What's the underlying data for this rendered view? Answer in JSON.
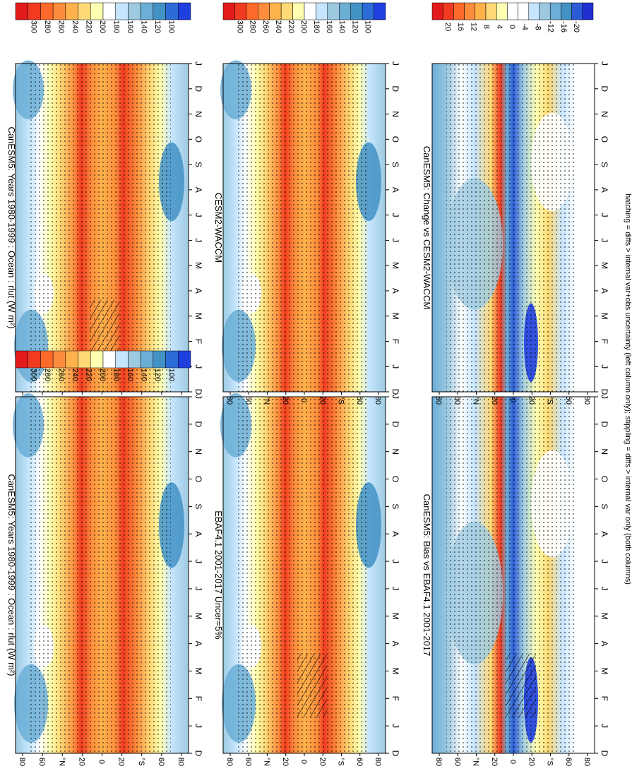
{
  "figure": {
    "footnote": "hatching = diffs > internal var+obs uncertainty (left column only); stippling = diffs > internal var only (both columns)"
  },
  "chart_data": [
    {
      "type": "heatmap",
      "id": "canesm5-left",
      "title": "CanESM5: Years 1980-1999 : Ocean : rlut (W m²)",
      "palette": "absolute",
      "months": [
        "D",
        "J",
        "F",
        "M",
        "A",
        "M",
        "J",
        "J",
        "A",
        "S",
        "O",
        "N",
        "D",
        "J"
      ],
      "lat_ticks": [
        "80",
        "60",
        "°N",
        "20",
        "0",
        "20",
        "°S",
        "60",
        "80"
      ],
      "colorbar": [
        "300",
        "280",
        "260",
        "240",
        "220",
        "200",
        "180",
        "160",
        "140",
        "120",
        "100"
      ],
      "hatching": true
    },
    {
      "type": "heatmap",
      "id": "canesm5-right",
      "title": "CanESM5: Years 1980-1999 : Ocean : rlut (W m²)",
      "palette": "absolute",
      "months": [
        "D",
        "J",
        "F",
        "M",
        "A",
        "M",
        "J",
        "J",
        "A",
        "S",
        "O",
        "N",
        "D",
        "J"
      ],
      "lat_ticks": [
        "80",
        "60",
        "°N",
        "20",
        "0",
        "20",
        "°S",
        "60",
        "80"
      ],
      "colorbar": [
        "300",
        "280",
        "260",
        "240",
        "220",
        "200",
        "180",
        "160",
        "140",
        "120",
        "100"
      ],
      "hatching": false
    },
    {
      "type": "heatmap",
      "id": "ebaf",
      "title": "EBAF4.1 2001-2017 Uncer=5%",
      "palette": "absolute",
      "months": [
        "D",
        "J",
        "F",
        "M",
        "A",
        "M",
        "J",
        "J",
        "A",
        "S",
        "O",
        "N",
        "D",
        "J"
      ],
      "lat_ticks": [
        "80",
        "60",
        "°N",
        "20",
        "0",
        "20",
        "°S",
        "60",
        "80"
      ],
      "colorbar": [
        "300",
        "280",
        "260",
        "240",
        "220",
        "200",
        "180",
        "160",
        "140",
        "120",
        "100"
      ],
      "hatching": true
    },
    {
      "type": "heatmap",
      "id": "cesm2",
      "title": "CESM2-WACCM",
      "palette": "absolute",
      "months": [
        "D",
        "J",
        "F",
        "M",
        "A",
        "M",
        "J",
        "J",
        "A",
        "S",
        "O",
        "N",
        "D",
        "J"
      ],
      "lat_ticks": [
        "80",
        "60",
        "°N",
        "20",
        "0",
        "20",
        "°S",
        "60",
        "80"
      ],
      "colorbar": [
        "300",
        "280",
        "260",
        "240",
        "220",
        "200",
        "180",
        "160",
        "140",
        "120",
        "100"
      ],
      "hatching": false
    },
    {
      "type": "heatmap",
      "id": "bias",
      "title": "CanESM5: Bias vs EBAF4.1 2001-2017",
      "palette": "diff",
      "months": [
        "D",
        "J",
        "F",
        "M",
        "A",
        "M",
        "J",
        "J",
        "A",
        "S",
        "O",
        "N",
        "D",
        "J"
      ],
      "lat_ticks": [
        "80",
        "60",
        "°N",
        "20",
        "0",
        "20",
        "°S",
        "60",
        "80"
      ],
      "colorbar": [
        "20",
        "16",
        "12",
        "8",
        "4",
        "0",
        "-4",
        "-8",
        "-12",
        "-16",
        "-20"
      ],
      "hatching": true
    },
    {
      "type": "heatmap",
      "id": "change",
      "title": "CanESM5: Change vs CESM2-WACCM",
      "palette": "diff",
      "months": [
        "D",
        "J",
        "F",
        "M",
        "A",
        "M",
        "J",
        "J",
        "A",
        "S",
        "O",
        "N",
        "D",
        "J"
      ],
      "lat_ticks": [
        "80",
        "60",
        "°N",
        "20",
        "0",
        "20",
        "°S",
        "60",
        "80"
      ],
      "colorbar": [
        "20",
        "16",
        "12",
        "8",
        "4",
        "0",
        "-4",
        "-8",
        "-12",
        "-16",
        "-20"
      ],
      "hatching": false
    }
  ]
}
